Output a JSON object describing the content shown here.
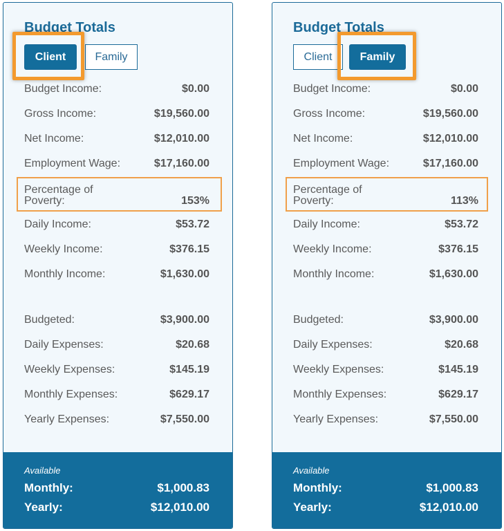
{
  "panels": [
    {
      "title": "Budget Totals",
      "tabs": [
        {
          "label": "Client",
          "active": true
        },
        {
          "label": "Family",
          "active": false
        }
      ],
      "rows": [
        {
          "label": "Budget Income:",
          "value": "$0.00"
        },
        {
          "label": "Gross Income:",
          "value": "$19,560.00"
        },
        {
          "label": "Net Income:",
          "value": "$12,010.00"
        },
        {
          "label": "Employment Wage:",
          "value": "$17,160.00"
        },
        {
          "label_line1": "Percentage of",
          "label_line2": "Poverty:",
          "value": "153%"
        },
        {
          "label": "Daily Income:",
          "value": "$53.72"
        },
        {
          "label": "Weekly Income:",
          "value": "$376.15"
        },
        {
          "label": "Monthly Income:",
          "value": "$1,630.00"
        },
        {
          "label": "Budgeted:",
          "value": "$3,900.00"
        },
        {
          "label": "Daily Expenses:",
          "value": "$20.68"
        },
        {
          "label": "Weekly Expenses:",
          "value": "$145.19"
        },
        {
          "label": "Monthly Expenses:",
          "value": "$629.17"
        },
        {
          "label": "Yearly Expenses:",
          "value": "$7,550.00"
        }
      ],
      "footer": {
        "available": "Available",
        "monthly_label": "Monthly:",
        "monthly_value": "$1,000.83",
        "yearly_label": "Yearly:",
        "yearly_value": "$12,010.00"
      }
    },
    {
      "title": "Budget Totals",
      "tabs": [
        {
          "label": "Client",
          "active": false
        },
        {
          "label": "Family",
          "active": true
        }
      ],
      "rows": [
        {
          "label": "Budget Income:",
          "value": "$0.00"
        },
        {
          "label": "Gross Income:",
          "value": "$19,560.00"
        },
        {
          "label": "Net Income:",
          "value": "$12,010.00"
        },
        {
          "label": "Employment Wage:",
          "value": "$17,160.00"
        },
        {
          "label_line1": "Percentage of",
          "label_line2": "Poverty:",
          "value": "113%"
        },
        {
          "label": "Daily Income:",
          "value": "$53.72"
        },
        {
          "label": "Weekly Income:",
          "value": "$376.15"
        },
        {
          "label": "Monthly Income:",
          "value": "$1,630.00"
        },
        {
          "label": "Budgeted:",
          "value": "$3,900.00"
        },
        {
          "label": "Daily Expenses:",
          "value": "$20.68"
        },
        {
          "label": "Weekly Expenses:",
          "value": "$145.19"
        },
        {
          "label": "Monthly Expenses:",
          "value": "$629.17"
        },
        {
          "label": "Yearly Expenses:",
          "value": "$7,550.00"
        }
      ],
      "footer": {
        "available": "Available",
        "monthly_label": "Monthly:",
        "monthly_value": "$1,000.83",
        "yearly_label": "Yearly:",
        "yearly_value": "$12,010.00"
      }
    }
  ],
  "colors": {
    "accent": "#136d9c",
    "highlight": "#f39a2e"
  }
}
